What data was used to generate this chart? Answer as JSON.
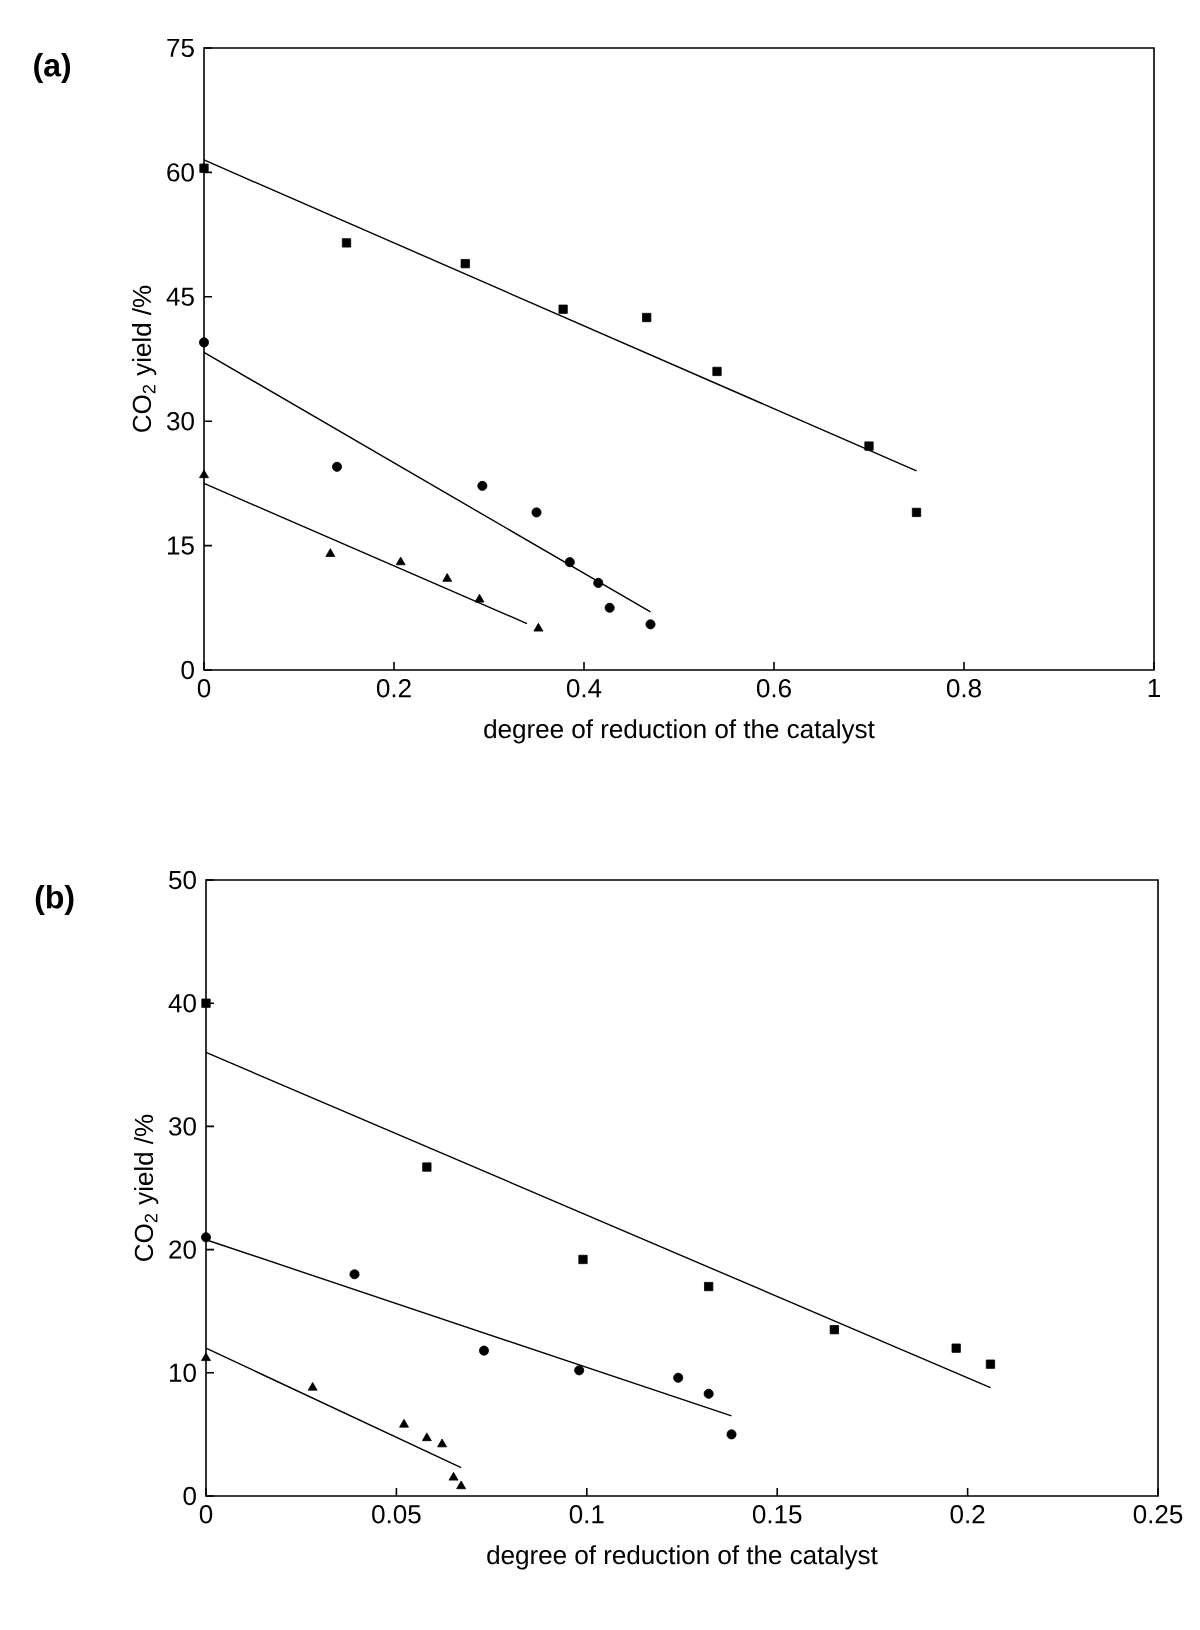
{
  "chart_data": [
    {
      "type": "scatter",
      "title": "(a)",
      "xlabel": "degree of reduction of the catalyst",
      "ylabel": "CO$_{2}$ yield /%",
      "xlim": [
        0,
        1
      ],
      "ylim": [
        0,
        75
      ],
      "xticks": [
        0,
        0.2,
        0.4,
        0.6,
        0.8,
        1
      ],
      "yticks": [
        0,
        15,
        30,
        45,
        60,
        75
      ],
      "series": [
        {
          "type": "scatter",
          "marker": "square",
          "color": "#000000",
          "x": [
            0,
            0.15,
            0.275,
            0.378,
            0.466,
            0.54,
            0.7,
            0.75
          ],
          "values": [
            60.5,
            51.5,
            49,
            43.5,
            42.5,
            36,
            27,
            19
          ]
        },
        {
          "type": "scatter",
          "marker": "circle",
          "color": "#000000",
          "x": [
            0,
            0.14,
            0.293,
            0.35,
            0.385,
            0.415,
            0.427,
            0.47
          ],
          "values": [
            39.5,
            24.5,
            22.2,
            19,
            13,
            10.5,
            7.5,
            5.5
          ]
        },
        {
          "type": "scatter",
          "marker": "triangle",
          "color": "#000000",
          "x": [
            0,
            0.133,
            0.207,
            0.256,
            0.29,
            0.352
          ],
          "values": [
            23.5,
            14,
            13,
            11,
            8.5,
            5
          ]
        },
        {
          "type": "line",
          "marker": "none",
          "color": "#000000",
          "x": [
            0,
            0.75
          ],
          "values": [
            61.5,
            24
          ]
        },
        {
          "type": "line",
          "marker": "none",
          "color": "#000000",
          "x": [
            0,
            0.47
          ],
          "values": [
            38.3,
            7
          ]
        },
        {
          "type": "line",
          "marker": "none",
          "color": "#000000",
          "x": [
            0,
            0.34
          ],
          "values": [
            22.5,
            5.6
          ]
        }
      ]
    },
    {
      "type": "scatter",
      "title": "(b)",
      "xlabel": "degree of reduction of the catalyst",
      "ylabel": "CO$_{2}$ yield /%",
      "xlim": [
        0,
        0.25
      ],
      "ylim": [
        0,
        50
      ],
      "xticks": [
        0,
        0.05,
        0.1,
        0.15,
        0.2,
        0.25
      ],
      "yticks": [
        0,
        10,
        20,
        30,
        40,
        50
      ],
      "series": [
        {
          "type": "scatter",
          "marker": "square",
          "color": "#000000",
          "x": [
            0,
            0.058,
            0.099,
            0.132,
            0.165,
            0.197,
            0.206
          ],
          "values": [
            40,
            26.7,
            19.2,
            17,
            13.5,
            12,
            10.7
          ]
        },
        {
          "type": "scatter",
          "marker": "circle",
          "color": "#000000",
          "x": [
            0,
            0.039,
            0.073,
            0.098,
            0.124,
            0.132,
            0.138
          ],
          "values": [
            21,
            18,
            11.8,
            10.2,
            9.6,
            8.3,
            5
          ]
        },
        {
          "type": "scatter",
          "marker": "triangle",
          "color": "#000000",
          "x": [
            0,
            0.028,
            0.052,
            0.058,
            0.062,
            0.065,
            0.067
          ],
          "values": [
            11.2,
            8.8,
            5.8,
            4.7,
            4.2,
            1.5,
            0.8
          ]
        },
        {
          "type": "line",
          "marker": "none",
          "color": "#000000",
          "x": [
            0,
            0.206
          ],
          "values": [
            36,
            8.8
          ]
        },
        {
          "type": "line",
          "marker": "none",
          "color": "#000000",
          "x": [
            0,
            0.138
          ],
          "values": [
            20.8,
            6.5
          ]
        },
        {
          "type": "line",
          "marker": "none",
          "color": "#000000",
          "x": [
            0,
            0.067
          ],
          "values": [
            12,
            2.3
          ]
        }
      ]
    }
  ]
}
